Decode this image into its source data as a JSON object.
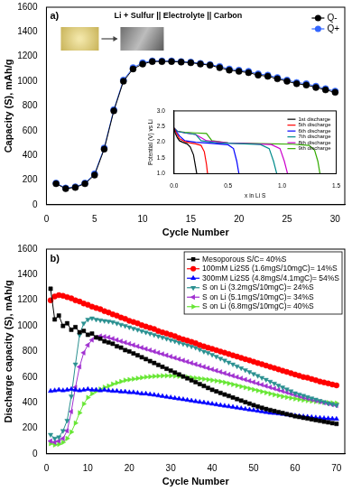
{
  "chart_data": [
    {
      "type": "line",
      "x_label": "Cycle Number",
      "y_label": "Capacity (S), mAh/g",
      "annotations": [
        "a)",
        "Li + Sulfur || Electrolyte || Carbon"
      ],
      "x": [
        1,
        2,
        3,
        4,
        5,
        6,
        7,
        8,
        9,
        10,
        11,
        12,
        13,
        14,
        15,
        16,
        17,
        18,
        19,
        20,
        21,
        22,
        23,
        24,
        25,
        26,
        27,
        28,
        29,
        30
      ],
      "series": [
        {
          "name": "Q-",
          "color": "#000000",
          "marker": "circle",
          "line_style": "solid",
          "values": [
            170,
            130,
            140,
            170,
            240,
            450,
            760,
            1000,
            1100,
            1140,
            1160,
            1160,
            1160,
            1155,
            1150,
            1140,
            1130,
            1110,
            1090,
            1080,
            1070,
            1050,
            1040,
            1020,
            1000,
            980,
            970,
            950,
            930,
            910
          ]
        },
        {
          "name": "Q+",
          "color": "#3366ff",
          "marker": "circle",
          "line_style": "solid",
          "values": [
            175,
            135,
            145,
            175,
            250,
            460,
            770,
            1010,
            1110,
            1150,
            1165,
            1165,
            1165,
            1160,
            1155,
            1145,
            1135,
            1120,
            1100,
            1090,
            1080,
            1060,
            1050,
            1030,
            1010,
            990,
            980,
            960,
            940,
            920
          ]
        }
      ],
      "xlim": [
        0,
        31
      ],
      "xticks": [
        0,
        5,
        10,
        15,
        20,
        25,
        30
      ],
      "ylim": [
        0,
        1600
      ],
      "yticks": [
        0,
        200,
        400,
        600,
        800,
        1000,
        1200,
        1400,
        1600
      ],
      "grid": false,
      "legend": "upper right"
    },
    {
      "type": "line",
      "x_label": "x in Li S",
      "y_label": "Potential (V) vs Li",
      "series": [
        {
          "name": "1st discharge",
          "color": "#000000",
          "marker": "none",
          "line_style": "solid",
          "x": [
            0,
            0.01,
            0.03,
            0.05,
            0.08,
            0.12,
            0.15,
            0.18,
            0.2,
            0.21
          ],
          "values": [
            2.45,
            2.3,
            2.15,
            2.05,
            2.0,
            1.95,
            1.85,
            1.6,
            1.2,
            1.0
          ]
        },
        {
          "name": "5th discharge",
          "color": "#ff0000",
          "marker": "none",
          "line_style": "solid",
          "x": [
            0,
            0.02,
            0.05,
            0.1,
            0.15,
            0.2,
            0.25,
            0.28,
            0.3,
            0.31
          ],
          "values": [
            2.45,
            2.3,
            2.12,
            2.02,
            1.98,
            1.95,
            1.9,
            1.7,
            1.3,
            1.0
          ]
        },
        {
          "name": "6th discharge",
          "color": "#0000ff",
          "marker": "none",
          "line_style": "solid",
          "x": [
            0,
            0.02,
            0.05,
            0.1,
            0.2,
            0.3,
            0.4,
            0.5,
            0.55,
            0.58,
            0.6
          ],
          "values": [
            2.45,
            2.35,
            2.2,
            2.05,
            2.0,
            1.98,
            1.95,
            1.92,
            1.8,
            1.4,
            1.0
          ]
        },
        {
          "name": "7th discharge",
          "color": "#008b8b",
          "marker": "none",
          "line_style": "solid",
          "x": [
            0,
            0.03,
            0.1,
            0.2,
            0.25,
            0.4,
            0.6,
            0.8,
            0.88,
            0.92,
            0.95
          ],
          "values": [
            2.45,
            2.35,
            2.3,
            2.25,
            2.05,
            1.98,
            1.96,
            1.93,
            1.8,
            1.4,
            1.0
          ]
        },
        {
          "name": "8th discharge",
          "color": "#cc00cc",
          "marker": "none",
          "line_style": "solid",
          "x": [
            0,
            0.03,
            0.1,
            0.2,
            0.3,
            0.5,
            0.7,
            0.9,
            0.98,
            1.02,
            1.05
          ],
          "values": [
            2.45,
            2.35,
            2.3,
            2.25,
            2.05,
            1.98,
            1.96,
            1.93,
            1.8,
            1.4,
            1.0
          ]
        },
        {
          "name": "9th discharge",
          "color": "#33aa00",
          "marker": "none",
          "line_style": "solid",
          "x": [
            0,
            0.03,
            0.1,
            0.2,
            0.3,
            0.35,
            0.5,
            0.8,
            1.1,
            1.25,
            1.3,
            1.33,
            1.35
          ],
          "values": [
            2.45,
            2.35,
            2.32,
            2.3,
            2.28,
            2.05,
            1.98,
            1.96,
            1.94,
            1.9,
            1.75,
            1.4,
            1.0
          ]
        }
      ],
      "xlim": [
        0,
        1.5
      ],
      "xticks": [
        {
          "value": 0,
          "label": "0.0"
        },
        0.5,
        {
          "value": 1,
          "label": "1.0"
        },
        1.5
      ],
      "ylim": [
        1,
        3
      ],
      "yticks": [
        {
          "value": 1,
          "label": "1.0"
        },
        1.5,
        {
          "value": 2,
          "label": "2.0"
        },
        2.5,
        {
          "value": 3,
          "label": "3.0"
        }
      ],
      "grid": false,
      "legend": "upper right"
    },
    {
      "type": "line",
      "x_label": "Cycle Number",
      "y_label": "Discharge capacity (S), mAh/g",
      "annotations": [
        "b)"
      ],
      "x": [
        1,
        2,
        3,
        4,
        5,
        6,
        7,
        8,
        9,
        10,
        11,
        12,
        13,
        14,
        15,
        16,
        17,
        18,
        19,
        20,
        21,
        22,
        23,
        24,
        25,
        26,
        27,
        28,
        29,
        30,
        31,
        32,
        33,
        34,
        35,
        36,
        37,
        38,
        39,
        40,
        41,
        42,
        43,
        44,
        45,
        46,
        47,
        48,
        49,
        50,
        51,
        52,
        53,
        54,
        55,
        56,
        57,
        58,
        59,
        60,
        61,
        62,
        63,
        64,
        65,
        66,
        67,
        68,
        69,
        70
      ],
      "series": [
        {
          "name": "Mesoporous S/C= 40%S",
          "color": "#000000",
          "marker": "square",
          "line_style": "solid",
          "values": [
            1290,
            1050,
            1080,
            1000,
            1020,
            970,
            990,
            950,
            960,
            930,
            940,
            910,
            900,
            880,
            870,
            860,
            840,
            830,
            810,
            800,
            785,
            770,
            755,
            740,
            725,
            710,
            695,
            680,
            665,
            650,
            635,
            620,
            605,
            590,
            575,
            560,
            545,
            530,
            515,
            500,
            488,
            476,
            464,
            452,
            440,
            428,
            416,
            404,
            392,
            380,
            370,
            360,
            350,
            342,
            334,
            326,
            318,
            310,
            302,
            294,
            288,
            282,
            276,
            270,
            264,
            258,
            252,
            246,
            240,
            234
          ]
        },
        {
          "name": "100mM Li2S5 (1.6mgS/10mgC)= 14%S",
          "color": "#ff0000",
          "marker": "circle",
          "line_style": "solid",
          "values": [
            1200,
            1230,
            1240,
            1235,
            1225,
            1215,
            1200,
            1190,
            1175,
            1165,
            1150,
            1140,
            1130,
            1115,
            1105,
            1090,
            1080,
            1065,
            1055,
            1040,
            1030,
            1020,
            1005,
            995,
            985,
            975,
            960,
            950,
            940,
            930,
            920,
            905,
            895,
            885,
            875,
            865,
            850,
            840,
            830,
            820,
            810,
            800,
            790,
            780,
            770,
            760,
            750,
            740,
            730,
            720,
            710,
            700,
            690,
            680,
            670,
            660,
            650,
            640,
            630,
            620,
            610,
            600,
            595,
            585,
            575,
            565,
            558,
            550,
            542,
            535
          ]
        },
        {
          "name": "300mM Li2S5 (4.8mgS/4.1mgC)= 54%S",
          "color": "#0000ff",
          "marker": "triangle",
          "line_style": "solid",
          "values": [
            490,
            495,
            500,
            495,
            500,
            505,
            500,
            495,
            500,
            505,
            500,
            500,
            495,
            500,
            495,
            490,
            490,
            485,
            485,
            480,
            480,
            475,
            470,
            470,
            465,
            460,
            455,
            450,
            445,
            440,
            435,
            430,
            425,
            420,
            415,
            410,
            405,
            400,
            395,
            390,
            385,
            380,
            375,
            370,
            365,
            360,
            355,
            350,
            345,
            340,
            335,
            330,
            325,
            320,
            318,
            314,
            310,
            306,
            302,
            298,
            295,
            292,
            289,
            286,
            283,
            280,
            278,
            276,
            274,
            272
          ]
        },
        {
          "name": "S on Li (3.2mgS/10mgC)= 24%S",
          "color": "#2a9090",
          "marker": "triangle-down",
          "line_style": "solid",
          "values": [
            150,
            120,
            130,
            180,
            260,
            450,
            700,
            930,
            1020,
            1050,
            1060,
            1050,
            1045,
            1040,
            1035,
            1030,
            1020,
            1010,
            1000,
            990,
            980,
            970,
            960,
            950,
            940,
            930,
            920,
            910,
            900,
            890,
            880,
            870,
            860,
            850,
            840,
            830,
            815,
            800,
            790,
            775,
            760,
            745,
            730,
            715,
            700,
            685,
            670,
            655,
            640,
            625,
            610,
            595,
            580,
            565,
            550,
            535,
            520,
            505,
            490,
            475,
            465,
            455,
            445,
            435,
            425,
            415,
            405,
            395,
            388,
            380
          ]
        },
        {
          "name": "S on Li (5.1mgS/10mgC)= 34%S",
          "color": "#a030d0",
          "marker": "triangle-left",
          "line_style": "solid",
          "values": [
            100,
            90,
            100,
            120,
            180,
            330,
            520,
            680,
            790,
            850,
            890,
            910,
            920,
            915,
            910,
            900,
            890,
            880,
            870,
            860,
            850,
            840,
            830,
            820,
            810,
            800,
            790,
            780,
            770,
            760,
            750,
            740,
            730,
            720,
            710,
            700,
            690,
            680,
            670,
            660,
            650,
            640,
            630,
            620,
            610,
            600,
            590,
            580,
            570,
            560,
            550,
            540,
            530,
            520,
            510,
            500,
            490,
            480,
            470,
            460,
            450,
            440,
            432,
            424,
            416,
            408,
            400,
            392,
            385,
            378
          ]
        },
        {
          "name": "S on Li (6.8mgS/10mgC)= 40%S",
          "color": "#66e633",
          "marker": "triangle-right",
          "line_style": "solid",
          "values": [
            80,
            70,
            75,
            90,
            120,
            170,
            240,
            320,
            390,
            440,
            470,
            490,
            505,
            520,
            530,
            545,
            555,
            565,
            575,
            580,
            585,
            590,
            595,
            600,
            603,
            606,
            608,
            610,
            610,
            610,
            608,
            606,
            604,
            600,
            596,
            592,
            588,
            584,
            580,
            575,
            570,
            565,
            558,
            550,
            542,
            534,
            526,
            518,
            510,
            502,
            494,
            486,
            478,
            470,
            462,
            455,
            448,
            442,
            436,
            430,
            425,
            420,
            416,
            412,
            408,
            405,
            402,
            400,
            398,
            396
          ]
        }
      ],
      "xlim": [
        0,
        72
      ],
      "xticks": [
        0,
        10,
        20,
        30,
        40,
        50,
        60,
        70
      ],
      "ylim": [
        0,
        1600
      ],
      "yticks": [
        0,
        200,
        400,
        600,
        800,
        1000,
        1200,
        1400,
        1600
      ],
      "grid": false,
      "legend": "upper right"
    }
  ]
}
